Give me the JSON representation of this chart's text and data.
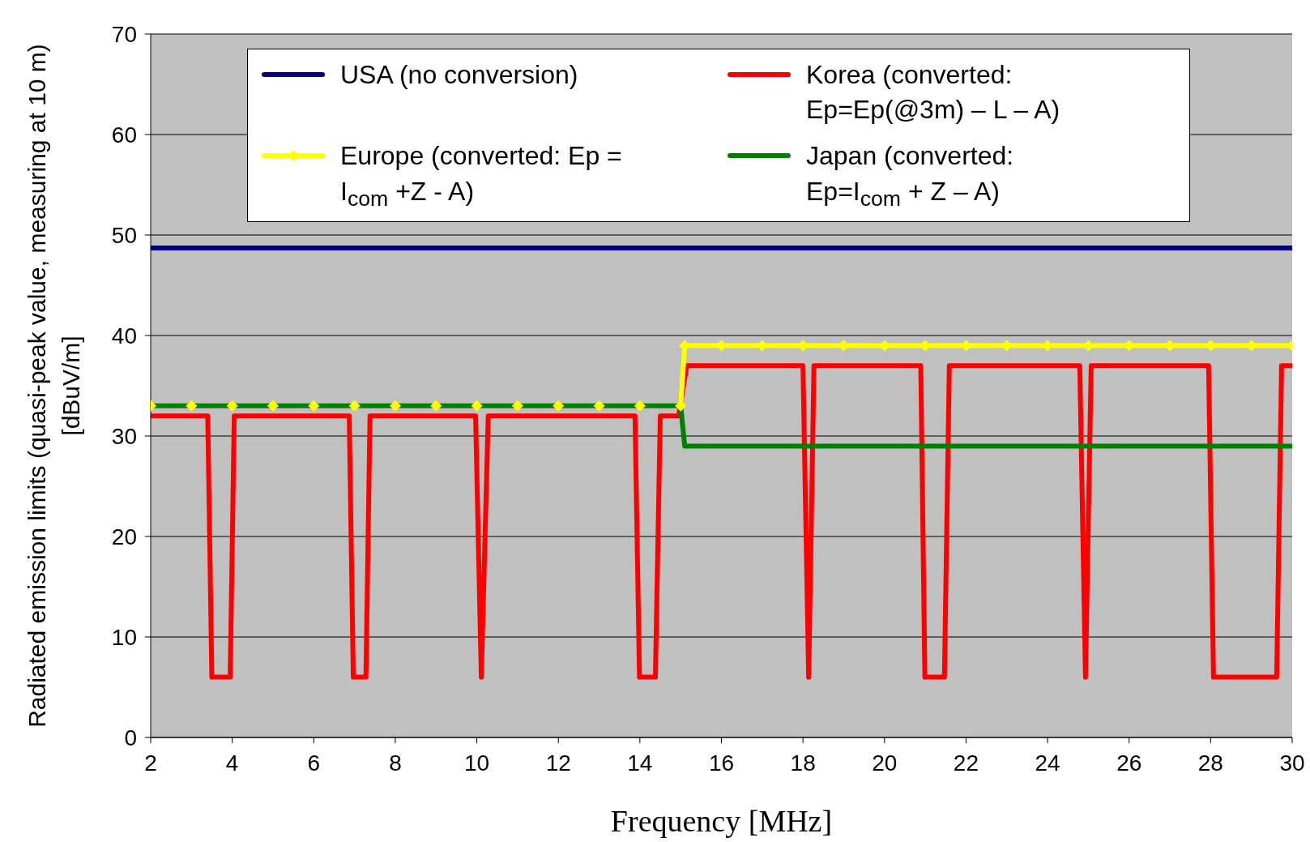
{
  "chart_data": {
    "type": "line",
    "xlabel": "Frequency [MHz]",
    "ylabel": "Radiated emission limits (quasi-peak value, measuring at 10 m) [dBuV/m]",
    "xlim": [
      2,
      30
    ],
    "xticks": [
      2,
      4,
      6,
      8,
      10,
      12,
      14,
      16,
      18,
      20,
      22,
      24,
      26,
      28,
      30
    ],
    "ylim": [
      0,
      70
    ],
    "yticks": [
      0,
      10,
      20,
      30,
      40,
      50,
      60,
      70
    ],
    "grid": "y",
    "legend": "top",
    "line_style": "solid",
    "series": [
      {
        "name": "USA (no conversion)",
        "color": "#000080",
        "marker": "none",
        "x": [
          2,
          30
        ],
        "values": [
          48.7,
          48.7
        ]
      },
      {
        "name": "Korea (converted: Ep=Ep(@3m) – L – A)",
        "color": "#ff0000",
        "marker": "none",
        "x": [
          2,
          3.4,
          3.5,
          3.95,
          4.05,
          6.87,
          6.97,
          7.28,
          7.38,
          9.97,
          10.11,
          10.28,
          13.88,
          13.99,
          14.38,
          14.5,
          14.95,
          15.15,
          18.0,
          18.14,
          18.27,
          20.89,
          20.99,
          21.47,
          21.59,
          24.79,
          24.93,
          25.07,
          27.95,
          28.07,
          29.62,
          29.74,
          30
        ],
        "values": [
          32,
          32,
          6,
          6,
          32,
          32,
          6,
          6,
          32,
          32,
          6,
          32,
          32,
          6,
          6,
          32,
          32,
          37,
          37,
          6,
          37,
          37,
          6,
          6,
          37,
          37,
          6,
          37,
          37,
          6,
          6,
          37,
          37
        ]
      },
      {
        "name": "Europe (converted: Ep = I$_{com}$ +Z - A)",
        "color": "#ffff00",
        "marker": "diamond",
        "x": [
          2,
          3,
          4,
          5,
          6,
          7,
          8,
          9,
          10,
          11,
          12,
          13,
          14,
          15,
          15.1,
          16,
          17,
          18,
          19,
          20,
          21,
          22,
          23,
          24,
          25,
          26,
          27,
          28,
          29,
          30
        ],
        "values": [
          33,
          33,
          33,
          33,
          33,
          33,
          33,
          33,
          33,
          33,
          33,
          33,
          33,
          33,
          39,
          39,
          39,
          39,
          39,
          39,
          39,
          39,
          39,
          39,
          39,
          39,
          39,
          39,
          39,
          39
        ]
      },
      {
        "name": "Japan (converted: Ep=I$_{com}$ + Z – A)",
        "color": "#008000",
        "marker": "none",
        "x": [
          2,
          15,
          15.1,
          30
        ],
        "values": [
          33,
          33,
          29,
          29
        ]
      }
    ]
  }
}
